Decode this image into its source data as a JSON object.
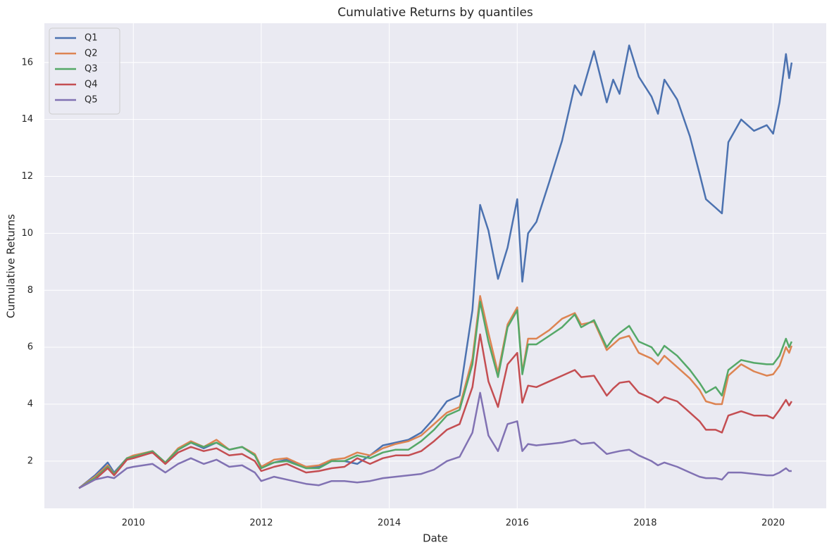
{
  "chart_data": {
    "type": "line",
    "title": "Cumulative Returns by quantiles",
    "x_label": "Date",
    "y_label": "Cumulative Returns",
    "x": [
      2009.15,
      2009.4,
      2009.6,
      2009.7,
      2009.9,
      2010.0,
      2010.3,
      2010.5,
      2010.7,
      2010.9,
      2011.1,
      2011.3,
      2011.5,
      2011.7,
      2011.9,
      2012.0,
      2012.2,
      2012.4,
      2012.7,
      2012.9,
      2013.1,
      2013.3,
      2013.5,
      2013.7,
      2013.9,
      2014.1,
      2014.3,
      2014.5,
      2014.7,
      2014.9,
      2015.1,
      2015.3,
      2015.42,
      2015.55,
      2015.7,
      2015.85,
      2016.0,
      2016.08,
      2016.17,
      2016.3,
      2016.5,
      2016.7,
      2016.9,
      2017.0,
      2017.2,
      2017.4,
      2017.5,
      2017.6,
      2017.75,
      2017.9,
      2018.1,
      2018.2,
      2018.3,
      2018.5,
      2018.7,
      2018.85,
      2018.95,
      2019.1,
      2019.2,
      2019.3,
      2019.5,
      2019.7,
      2019.9,
      2020.0,
      2020.1,
      2020.2,
      2020.25,
      2020.29
    ],
    "series": [
      {
        "name": "Q1",
        "color": "#4c72b0",
        "values": [
          1.05,
          1.5,
          1.95,
          1.6,
          2.1,
          2.15,
          2.3,
          1.95,
          2.4,
          2.65,
          2.45,
          2.65,
          2.4,
          2.5,
          2.2,
          1.8,
          1.95,
          2.05,
          1.8,
          1.8,
          2.0,
          2.0,
          1.9,
          2.2,
          2.55,
          2.65,
          2.75,
          3.0,
          3.5,
          4.1,
          4.3,
          7.3,
          11.0,
          10.1,
          8.4,
          9.5,
          11.2,
          8.3,
          10.0,
          10.4,
          11.8,
          13.25,
          15.2,
          14.85,
          16.4,
          14.6,
          15.4,
          14.9,
          16.6,
          15.5,
          14.8,
          14.2,
          15.4,
          14.7,
          13.4,
          12.1,
          11.2,
          10.9,
          10.7,
          13.2,
          14.0,
          13.6,
          13.8,
          13.5,
          14.6,
          16.3,
          15.45,
          16.0
        ]
      },
      {
        "name": "Q2",
        "color": "#dd8452",
        "values": [
          1.05,
          1.45,
          1.85,
          1.55,
          2.1,
          2.2,
          2.35,
          1.95,
          2.45,
          2.7,
          2.5,
          2.75,
          2.4,
          2.5,
          2.25,
          1.8,
          2.05,
          2.1,
          1.8,
          1.85,
          2.05,
          2.1,
          2.3,
          2.2,
          2.45,
          2.6,
          2.7,
          2.9,
          3.3,
          3.7,
          3.9,
          5.6,
          7.8,
          6.5,
          5.1,
          6.8,
          7.4,
          5.1,
          6.3,
          6.3,
          6.6,
          7.0,
          7.2,
          6.8,
          6.9,
          5.9,
          6.1,
          6.3,
          6.4,
          5.8,
          5.6,
          5.4,
          5.7,
          5.3,
          4.9,
          4.5,
          4.1,
          4.0,
          4.0,
          5.0,
          5.4,
          5.15,
          5.0,
          5.05,
          5.35,
          6.0,
          5.8,
          6.05
        ]
      },
      {
        "name": "Q3",
        "color": "#55a868",
        "values": [
          1.05,
          1.4,
          1.8,
          1.55,
          2.1,
          2.15,
          2.35,
          1.95,
          2.4,
          2.65,
          2.5,
          2.65,
          2.4,
          2.5,
          2.2,
          1.75,
          1.95,
          2.0,
          1.75,
          1.75,
          2.0,
          2.0,
          2.2,
          2.1,
          2.3,
          2.4,
          2.4,
          2.7,
          3.1,
          3.6,
          3.8,
          5.4,
          7.6,
          6.2,
          4.95,
          6.7,
          7.3,
          5.05,
          6.1,
          6.1,
          6.4,
          6.7,
          7.15,
          6.7,
          6.95,
          6.0,
          6.3,
          6.5,
          6.75,
          6.2,
          6.0,
          5.7,
          6.05,
          5.7,
          5.2,
          4.75,
          4.4,
          4.6,
          4.3,
          5.2,
          5.55,
          5.45,
          5.4,
          5.4,
          5.7,
          6.3,
          6.0,
          6.2
        ]
      },
      {
        "name": "Q4",
        "color": "#c44e52",
        "values": [
          1.05,
          1.35,
          1.75,
          1.5,
          2.05,
          2.1,
          2.3,
          1.9,
          2.3,
          2.5,
          2.35,
          2.45,
          2.2,
          2.25,
          2.0,
          1.65,
          1.8,
          1.9,
          1.6,
          1.65,
          1.75,
          1.8,
          2.1,
          1.9,
          2.1,
          2.2,
          2.2,
          2.35,
          2.7,
          3.1,
          3.3,
          4.6,
          6.45,
          4.8,
          3.9,
          5.4,
          5.8,
          4.05,
          4.65,
          4.6,
          4.8,
          5.0,
          5.2,
          4.95,
          5.0,
          4.3,
          4.55,
          4.75,
          4.8,
          4.4,
          4.2,
          4.05,
          4.25,
          4.1,
          3.7,
          3.4,
          3.1,
          3.1,
          3.0,
          3.6,
          3.75,
          3.6,
          3.6,
          3.5,
          3.8,
          4.15,
          3.95,
          4.1
        ]
      },
      {
        "name": "Q5",
        "color": "#8172b3",
        "values": [
          1.05,
          1.35,
          1.45,
          1.4,
          1.75,
          1.8,
          1.9,
          1.6,
          1.9,
          2.1,
          1.9,
          2.05,
          1.8,
          1.85,
          1.6,
          1.3,
          1.45,
          1.35,
          1.2,
          1.15,
          1.3,
          1.3,
          1.25,
          1.3,
          1.4,
          1.45,
          1.5,
          1.55,
          1.7,
          2.0,
          2.15,
          3.0,
          4.4,
          2.9,
          2.35,
          3.3,
          3.4,
          2.35,
          2.6,
          2.55,
          2.6,
          2.65,
          2.75,
          2.6,
          2.65,
          2.25,
          2.3,
          2.35,
          2.4,
          2.2,
          2.0,
          1.85,
          1.95,
          1.8,
          1.6,
          1.45,
          1.4,
          1.4,
          1.35,
          1.6,
          1.6,
          1.55,
          1.5,
          1.5,
          1.6,
          1.75,
          1.65,
          1.65
        ]
      }
    ],
    "xlim": [
      2008.61,
      2020.83
    ],
    "xticks": [
      2010,
      2012,
      2014,
      2016,
      2018,
      2020
    ],
    "ylim": [
      0.34,
      17.38
    ],
    "yticks": [
      2,
      4,
      6,
      8,
      10,
      12,
      14,
      16
    ],
    "grid": true,
    "legend": "upper left"
  }
}
